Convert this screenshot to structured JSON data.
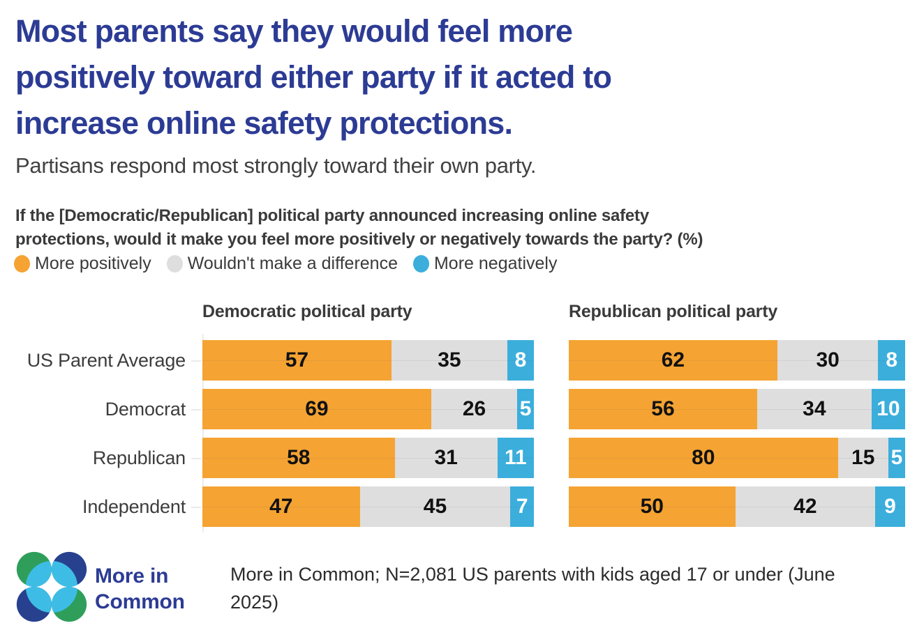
{
  "header": {
    "title_lines": [
      "Most parents say they would feel more",
      "positively toward either party if it acted to",
      "increase online safety protections."
    ],
    "subtitle": "Partisans respond most strongly toward their own party."
  },
  "question": {
    "lines": [
      "If the [Democratic/Republican] political party announced increasing online safety",
      "protections, would it make you feel more positively or negatively towards the party? (%)"
    ]
  },
  "chart_data": {
    "type": "bar",
    "orientation": "horizontal",
    "stacked": true,
    "xlim": [
      0,
      100
    ],
    "grid": "faint horizontal line through each bar center",
    "legend_position": "top-left above panels",
    "series_labels": [
      "More positively",
      "Wouldn't make a difference",
      "More negatively"
    ],
    "series_keys": [
      "more-positively",
      "wouldnt-make-a-difference",
      "more-negatively"
    ],
    "segment_colors": [
      "#F5A333",
      "#DEDEDE",
      "#3BAEDC"
    ],
    "value_label_colors": [
      "#111111",
      "#111111",
      "#FFFFFF"
    ],
    "categories": [
      "US Parent Average",
      "Democrat",
      "Republican",
      "Independent"
    ],
    "panels": [
      {
        "title": "Democratic political party",
        "rows": [
          {
            "category": "US Parent Average",
            "values": [
              57,
              35,
              8
            ]
          },
          {
            "category": "Democrat",
            "values": [
              69,
              26,
              5
            ]
          },
          {
            "category": "Republican",
            "values": [
              58,
              31,
              11
            ]
          },
          {
            "category": "Independent",
            "values": [
              47,
              45,
              7
            ]
          }
        ]
      },
      {
        "title": "Republican political party",
        "rows": [
          {
            "category": "US Parent Average",
            "values": [
              62,
              30,
              8
            ]
          },
          {
            "category": "Democrat",
            "values": [
              56,
              34,
              10
            ]
          },
          {
            "category": "Republican",
            "values": [
              80,
              15,
              5
            ]
          },
          {
            "category": "Independent",
            "values": [
              50,
              42,
              9
            ]
          }
        ]
      }
    ]
  },
  "brand_colors": {
    "title_blue": "#2C3B94",
    "logo_green": "#2F9E5B",
    "logo_navy": "#27418F",
    "logo_cyan": "#3DBDE6"
  },
  "footer": {
    "logo_line1": "More in",
    "logo_line2": "Common",
    "source_lines": [
      "More in Common; N=2,081 US parents with kids aged 17 or under (June",
      "2025)"
    ]
  }
}
